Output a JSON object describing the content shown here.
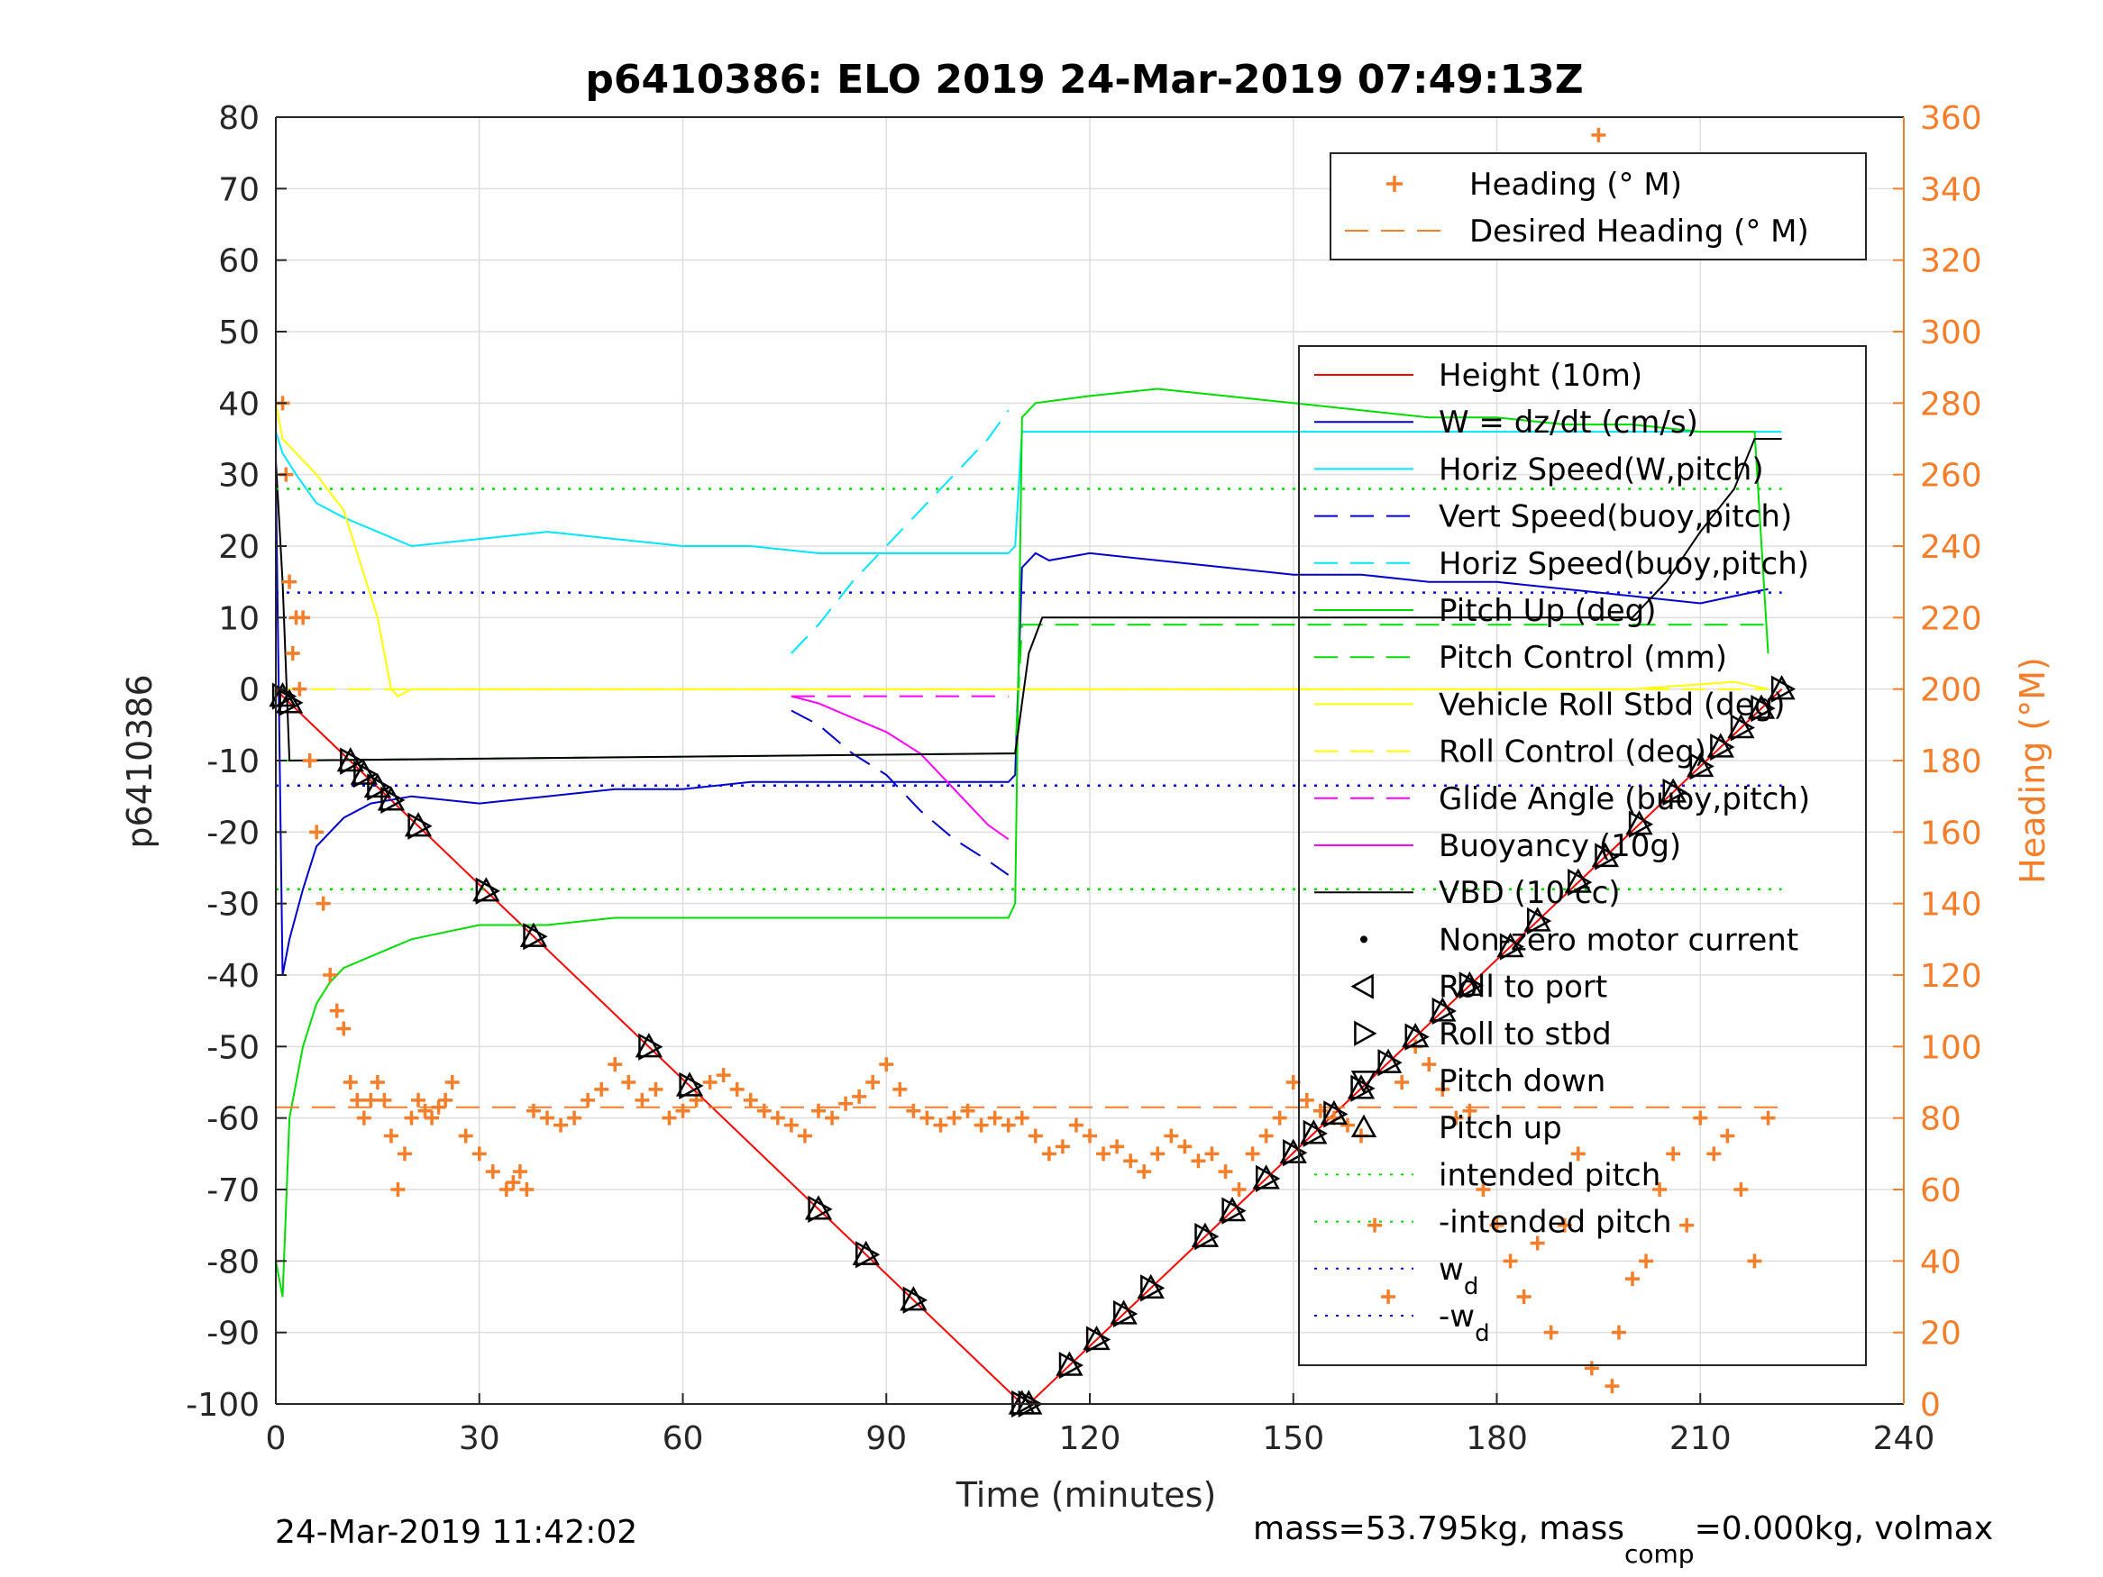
{
  "chart_data": {
    "type": "line",
    "title": "p6410386: ELO 2019 24-Mar-2019 07:49:13Z",
    "xlabel": "Time (minutes)",
    "ylabel": "p6410386",
    "ylabel_right": "Heading (°M)",
    "xlim": [
      0,
      240
    ],
    "ylim": [
      -100,
      80
    ],
    "ylim_right": [
      0,
      360
    ],
    "xticks": [
      "0",
      "30",
      "60",
      "90",
      "120",
      "150",
      "180",
      "210",
      "240"
    ],
    "yticks": [
      "-100",
      "-90",
      "-80",
      "-70",
      "-60",
      "-50",
      "-40",
      "-30",
      "-20",
      "-10",
      "0",
      "10",
      "20",
      "30",
      "40",
      "50",
      "60",
      "70",
      "80"
    ],
    "yticks_right": [
      "0",
      "20",
      "40",
      "60",
      "80",
      "100",
      "120",
      "140",
      "160",
      "180",
      "200",
      "220",
      "240",
      "260",
      "280",
      "300",
      "320",
      "340",
      "360"
    ],
    "grid": true,
    "footer_left": "24-Mar-2019 11:42:02",
    "footer_right_parts": [
      "mass=53.795kg, mass",
      "comp",
      "=0.000kg, volmax"
    ],
    "legend_top": {
      "position": "top-right",
      "entries": [
        {
          "label": "Heading (° M)",
          "color": "#f47e2a",
          "style": "plus"
        },
        {
          "label": "Desired Heading (° M)",
          "color": "#f47e2a",
          "style": "dashed"
        }
      ]
    },
    "legend_main": {
      "position": "right",
      "entries": [
        {
          "label": "Height (10m)",
          "color": "#ff0000",
          "style": "solid"
        },
        {
          "label": "W = dz/dt (cm/s)",
          "color": "#0000cc",
          "style": "solid"
        },
        {
          "label": "Horiz Speed(W,pitch)",
          "color": "#00e5ff",
          "style": "solid"
        },
        {
          "label": "Vert Speed(buoy,pitch)",
          "color": "#0000cc",
          "style": "dashed"
        },
        {
          "label": "Horiz Speed(buoy,pitch)",
          "color": "#00e5ff",
          "style": "dashed"
        },
        {
          "label": "Pitch Up (deg)",
          "color": "#00dd00",
          "style": "solid"
        },
        {
          "label": "Pitch Control (mm)",
          "color": "#00dd00",
          "style": "dashed"
        },
        {
          "label": "Vehicle Roll Stbd (deg)",
          "color": "#ffff00",
          "style": "solid"
        },
        {
          "label": "Roll Control (deg)",
          "color": "#ffff00",
          "style": "dashed"
        },
        {
          "label": "Glide Angle (buoy,pitch)",
          "color": "#ff00ff",
          "style": "dashed"
        },
        {
          "label": "Buoyancy (10g)",
          "color": "#ff00ff",
          "style": "solid"
        },
        {
          "label": "VBD (10 cc)",
          "color": "#000000",
          "style": "solid"
        },
        {
          "label": "Non-zero motor current",
          "color": "#000000",
          "style": "dot"
        },
        {
          "label": "Roll to port",
          "color": "#000000",
          "style": "tri-left"
        },
        {
          "label": "Roll to stbd",
          "color": "#000000",
          "style": "tri-right"
        },
        {
          "label": "Pitch down",
          "color": "#000000",
          "style": "tri-down"
        },
        {
          "label": "Pitch up",
          "color": "#000000",
          "style": "tri-up"
        },
        {
          "label": "intended pitch",
          "color": "#00dd00",
          "style": "dotted"
        },
        {
          "label": "-intended pitch",
          "color": "#00dd00",
          "style": "dotted"
        },
        {
          "label": "w",
          "sub": "d",
          "color": "#0000ff",
          "style": "dotted"
        },
        {
          "label": "-w",
          "sub": "d",
          "color": "#0000ff",
          "style": "dotted"
        }
      ]
    },
    "series": [
      {
        "name": "Height (10m)",
        "color": "#ff0000",
        "style": "solid",
        "axis": "left",
        "x": [
          0,
          1,
          110,
          111,
          222
        ],
        "y": [
          0,
          -1,
          -100,
          -100,
          0
        ]
      },
      {
        "name": "W = dz/dt (cm/s)",
        "color": "#0000cc",
        "style": "solid",
        "axis": "left",
        "x": [
          0,
          1,
          2,
          4,
          6,
          8,
          10,
          14,
          20,
          30,
          40,
          50,
          60,
          70,
          80,
          90,
          100,
          108,
          109,
          110,
          112,
          114,
          120,
          130,
          140,
          150,
          160,
          170,
          180,
          190,
          200,
          210,
          215,
          220
        ],
        "y": [
          30,
          -40,
          -35,
          -28,
          -22,
          -20,
          -18,
          -16,
          -15,
          -16,
          -15,
          -14,
          -14,
          -13,
          -13,
          -13,
          -13,
          -13,
          -12,
          17,
          19,
          18,
          19,
          18,
          17,
          16,
          16,
          15,
          15,
          14,
          13,
          12,
          13,
          14
        ]
      },
      {
        "name": "Horiz Speed(W,pitch)",
        "color": "#00e5ff",
        "style": "solid",
        "axis": "left",
        "x": [
          0,
          1,
          3,
          6,
          10,
          15,
          20,
          30,
          40,
          50,
          60,
          70,
          80,
          90,
          100,
          108,
          109,
          110,
          222
        ],
        "y": [
          36,
          33,
          30,
          26,
          24,
          22,
          20,
          21,
          22,
          21,
          20,
          20,
          19,
          19,
          19,
          19,
          20,
          36,
          36
        ]
      },
      {
        "name": "Vert Speed(buoy,pitch)",
        "color": "#0000cc",
        "style": "dashed",
        "axis": "left",
        "x": [
          76,
          80,
          85,
          90,
          95,
          100,
          105,
          108
        ],
        "y": [
          -3,
          -5,
          -9,
          -12,
          -17,
          -21,
          -24,
          -26
        ]
      },
      {
        "name": "Horiz Speed(buoy,pitch)",
        "color": "#00e5ff",
        "style": "dashed",
        "axis": "left",
        "x": [
          76,
          80,
          85,
          90,
          95,
          100,
          105,
          108
        ],
        "y": [
          5,
          9,
          15,
          20,
          25,
          30,
          35,
          39
        ]
      },
      {
        "name": "Pitch Up (deg)",
        "color": "#00dd00",
        "style": "solid",
        "axis": "left",
        "x": [
          0,
          1,
          2,
          4,
          6,
          8,
          10,
          15,
          20,
          30,
          40,
          50,
          60,
          70,
          80,
          90,
          100,
          108,
          109,
          110,
          112,
          120,
          130,
          140,
          150,
          160,
          170,
          180,
          190,
          200,
          210,
          218,
          220
        ],
        "y": [
          -80,
          -85,
          -60,
          -50,
          -44,
          -41,
          -39,
          -37,
          -35,
          -33,
          -33,
          -32,
          -32,
          -32,
          -32,
          -32,
          -32,
          -32,
          -30,
          38,
          40,
          41,
          42,
          41,
          40,
          39,
          38,
          38,
          37,
          37,
          36,
          36,
          5
        ]
      },
      {
        "name": "Pitch Control (mm)",
        "color": "#00dd00",
        "style": "dashed",
        "axis": "left",
        "x": [
          0,
          108,
          109,
          110,
          220
        ],
        "y": [
          -10,
          -9,
          -9,
          9,
          9
        ]
      },
      {
        "name": "Vehicle Roll Stbd (deg)",
        "color": "#ffff00",
        "style": "solid",
        "axis": "left",
        "x": [
          0,
          1,
          3,
          6,
          10,
          15,
          17,
          18,
          20,
          25,
          50,
          80,
          100,
          108,
          110,
          115,
          140,
          150,
          160,
          180,
          200,
          215,
          220
        ],
        "y": [
          40,
          35,
          33,
          30,
          25,
          10,
          0,
          -1,
          0,
          0,
          0,
          0,
          0,
          0,
          0,
          0,
          0,
          0,
          0,
          0,
          0,
          1,
          0
        ]
      },
      {
        "name": "Roll Control (deg)",
        "color": "#ffff00",
        "style": "dashed",
        "axis": "left",
        "x": [
          0,
          220
        ],
        "y": [
          0,
          0
        ]
      },
      {
        "name": "Glide Angle (buoy,pitch)",
        "color": "#ff00ff",
        "style": "dashed",
        "axis": "left",
        "x": [
          76,
          90,
          100,
          108
        ],
        "y": [
          -1,
          -1,
          -1,
          -1
        ]
      },
      {
        "name": "Buoyancy (10g)",
        "color": "#ff00ff",
        "style": "solid",
        "axis": "left",
        "x": [
          76,
          80,
          85,
          90,
          95,
          100,
          105,
          108
        ],
        "y": [
          -1,
          -2,
          -4,
          -6,
          -9,
          -14,
          -19,
          -21
        ]
      },
      {
        "name": "VBD (10 cc)",
        "color": "#000000",
        "style": "solid",
        "axis": "left",
        "x": [
          0,
          1,
          2,
          108,
          109,
          111,
          113,
          120,
          150,
          200,
          205,
          210,
          215,
          218,
          222
        ],
        "y": [
          32,
          15,
          -10,
          -9,
          -9,
          5,
          10,
          10,
          10,
          10,
          15,
          22,
          28,
          35,
          35
        ]
      },
      {
        "name": "intended pitch",
        "color": "#00dd00",
        "style": "dotted",
        "axis": "left",
        "x": [
          0,
          222
        ],
        "y": [
          28,
          28
        ]
      },
      {
        "name": "-intended pitch",
        "color": "#00dd00",
        "style": "dotted",
        "axis": "left",
        "x": [
          0,
          222
        ],
        "y": [
          -28,
          -28
        ]
      },
      {
        "name": "w_d",
        "color": "#0000ff",
        "style": "dotted",
        "axis": "left",
        "x": [
          0,
          222
        ],
        "y": [
          13.5,
          13.5
        ]
      },
      {
        "name": "-w_d",
        "color": "#0000ff",
        "style": "dotted",
        "axis": "left",
        "x": [
          0,
          222
        ],
        "y": [
          -13.5,
          -13.5
        ]
      },
      {
        "name": "Desired Heading (° M)",
        "color": "#f47e2a",
        "style": "dashed",
        "axis": "right",
        "x": [
          0,
          222
        ],
        "y": [
          83,
          83
        ]
      }
    ],
    "heading": {
      "name": "Heading (° M)",
      "color": "#f47e2a",
      "axis": "right",
      "x": [
        1,
        1.5,
        2,
        2.5,
        3,
        3.5,
        4,
        5,
        6,
        7,
        8,
        9,
        10,
        11,
        12,
        13,
        14,
        15,
        16,
        17,
        18,
        19,
        20,
        21,
        22,
        23,
        24,
        25,
        26,
        28,
        30,
        32,
        34,
        35,
        36,
        37,
        38,
        40,
        42,
        44,
        46,
        48,
        50,
        52,
        54,
        56,
        58,
        60,
        62,
        64,
        66,
        68,
        70,
        72,
        74,
        76,
        78,
        80,
        82,
        84,
        86,
        88,
        90,
        92,
        94,
        96,
        98,
        100,
        102,
        104,
        106,
        108,
        110,
        112,
        114,
        116,
        118,
        120,
        122,
        124,
        126,
        128,
        130,
        132,
        134,
        136,
        138,
        140,
        142,
        144,
        146,
        148,
        150,
        152,
        154,
        156,
        158,
        160,
        162,
        164,
        166,
        168,
        170,
        172,
        174,
        176,
        178,
        180,
        182,
        184,
        186,
        188,
        190,
        192,
        194,
        195,
        196,
        197,
        198,
        200,
        202,
        204,
        206,
        208,
        210,
        212,
        214,
        216,
        218,
        220
      ],
      "y": [
        280,
        260,
        230,
        210,
        220,
        200,
        220,
        180,
        160,
        140,
        120,
        110,
        105,
        90,
        85,
        80,
        85,
        90,
        85,
        75,
        60,
        70,
        80,
        85,
        82,
        80,
        83,
        85,
        90,
        75,
        70,
        65,
        60,
        62,
        65,
        60,
        82,
        80,
        78,
        80,
        85,
        88,
        95,
        90,
        85,
        88,
        80,
        82,
        85,
        90,
        92,
        88,
        85,
        82,
        80,
        78,
        75,
        82,
        80,
        84,
        86,
        90,
        95,
        88,
        82,
        80,
        78,
        80,
        82,
        78,
        80,
        78,
        80,
        75,
        70,
        72,
        78,
        75,
        70,
        72,
        68,
        65,
        70,
        75,
        72,
        68,
        70,
        65,
        60,
        70,
        75,
        80,
        90,
        85,
        82,
        80,
        78,
        75,
        50,
        30,
        90,
        100,
        95,
        88,
        80,
        82,
        60,
        50,
        40,
        30,
        45,
        20,
        50,
        70,
        10,
        355,
        345,
        5,
        20,
        35,
        40,
        60,
        70,
        50,
        80,
        70,
        75,
        60,
        40,
        80
      ]
    }
  }
}
